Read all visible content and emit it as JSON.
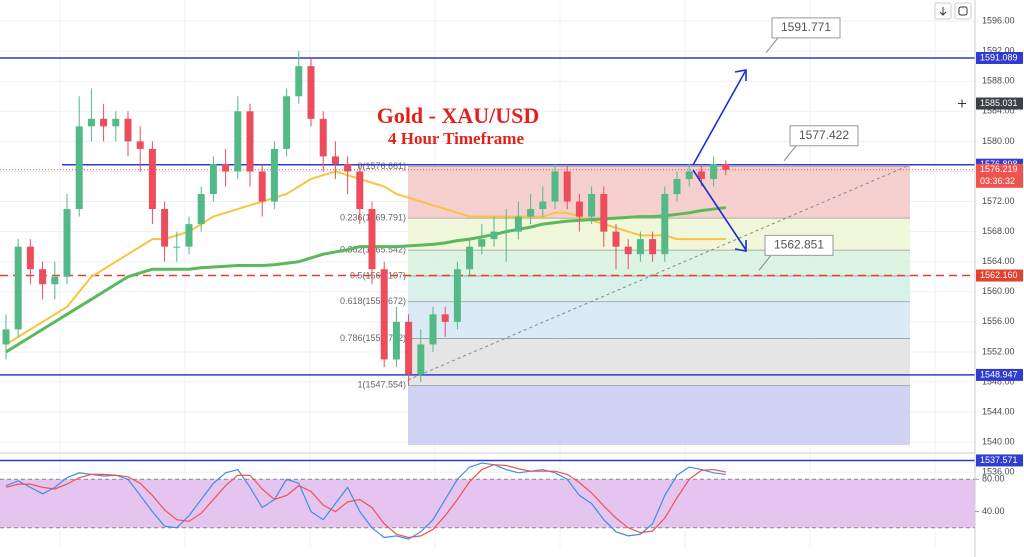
{
  "chart_data": {
    "type": "candlestick",
    "title": "Gold - XAU/USD",
    "subtitle": "4 Hour Timeframe",
    "open": [
      1553,
      1555,
      1566,
      1563,
      1561,
      1562,
      1571,
      1582,
      1583,
      1582,
      1583,
      1580,
      1579,
      1571,
      1566,
      1566,
      1569,
      1573,
      1577,
      1576,
      1584,
      1576,
      1572,
      1579,
      1586,
      1590,
      1583,
      1578,
      1577,
      1576,
      1571,
      1563,
      1551,
      1556,
      1549,
      1553,
      1557,
      1556,
      1563,
      1566,
      1567,
      1568,
      1568,
      1570,
      1571,
      1572,
      1576,
      1572,
      1570,
      1573,
      1568,
      1566,
      1565,
      1567,
      1565,
      1573,
      1575,
      1576,
      1575,
      1577
    ],
    "high": [
      1557,
      1567,
      1567,
      1564,
      1564,
      1573,
      1586,
      1587,
      1585,
      1584,
      1584,
      1582,
      1580,
      1572,
      1568,
      1570,
      1574,
      1578,
      1579,
      1586,
      1585,
      1577,
      1580,
      1587,
      1592,
      1591,
      1584,
      1580,
      1578,
      1577,
      1572,
      1564,
      1558,
      1557,
      1555,
      1558,
      1558,
      1564,
      1567,
      1569,
      1570,
      1571,
      1572,
      1573,
      1574,
      1577,
      1577,
      1573,
      1574,
      1574,
      1569,
      1567,
      1568,
      1568,
      1574,
      1576,
      1577,
      1577,
      1578,
      1577.5
    ],
    "low": [
      1551,
      1554,
      1561,
      1559,
      1559,
      1561,
      1570,
      1580,
      1580,
      1580,
      1578,
      1576,
      1569,
      1564,
      1564,
      1565,
      1568,
      1572,
      1574,
      1575,
      1574,
      1570,
      1571,
      1578,
      1585,
      1582,
      1576,
      1575,
      1573,
      1569,
      1561,
      1550,
      1550,
      1547.554,
      1548,
      1552,
      1554,
      1555,
      1562,
      1565,
      1566,
      1564,
      1567,
      1569,
      1570,
      1571,
      1571,
      1568,
      1569,
      1566,
      1563,
      1563,
      1564,
      1564,
      1564,
      1572,
      1574,
      1574,
      1574,
      1575.5
    ],
    "close": [
      1555,
      1566,
      1563,
      1561,
      1562,
      1571,
      1582,
      1583,
      1582,
      1583,
      1580,
      1579,
      1571,
      1566,
      1566,
      1569,
      1573,
      1577,
      1576,
      1584,
      1576,
      1572,
      1579,
      1586,
      1590,
      1583,
      1578,
      1577,
      1576,
      1571,
      1563,
      1551,
      1556,
      1549,
      1553,
      1557,
      1556,
      1563,
      1566,
      1567,
      1568,
      1568,
      1570,
      1571,
      1572,
      1576,
      1572,
      1570,
      1573,
      1568,
      1566,
      1565,
      1567,
      1565,
      1573,
      1575,
      1576,
      1575,
      1577,
      1576.219
    ],
    "up_color": "#53b987",
    "down_color": "#eb4d5c",
    "ylim": [
      1536.5,
      1598.8
    ],
    "yticks": [
      {
        "value": 1596,
        "label": "1596.00"
      },
      {
        "value": 1592,
        "label": "1592.00"
      },
      {
        "value": 1588,
        "label": "1588.00"
      },
      {
        "value": 1584,
        "label": "1584.00"
      },
      {
        "value": 1580,
        "label": "1580.00"
      },
      {
        "value": 1576,
        "label": "1576.00"
      },
      {
        "value": 1572,
        "label": "1572.00"
      },
      {
        "value": 1568,
        "label": "1568.00"
      },
      {
        "value": 1564,
        "label": "1564.00"
      },
      {
        "value": 1560,
        "label": "1560.00"
      },
      {
        "value": 1556,
        "label": "1556.00"
      },
      {
        "value": 1552,
        "label": "1552.00"
      },
      {
        "value": 1548,
        "label": "1548.00"
      },
      {
        "value": 1544,
        "label": "1544.00"
      },
      {
        "value": 1540,
        "label": "1540.00"
      },
      {
        "value": 1536,
        "label": "1536.00"
      }
    ],
    "grid": true,
    "moving_averages": [
      {
        "color": "#f7c544",
        "values": [
          1553,
          1554,
          1555,
          1556,
          1557,
          1558,
          1560,
          1562,
          1563,
          1564,
          1565,
          1566,
          1567,
          1567,
          1567.5,
          1568,
          1569,
          1570,
          1570.5,
          1571,
          1571.5,
          1572,
          1572.5,
          1573,
          1574,
          1575,
          1575.5,
          1576,
          1575.5,
          1575,
          1574.5,
          1574,
          1573,
          1572.5,
          1572,
          1571.5,
          1571,
          1570.5,
          1570,
          1570,
          1570,
          1570,
          1570,
          1570,
          1570,
          1570.5,
          1570.5,
          1570,
          1569.5,
          1569,
          1568.5,
          1568,
          1567.5,
          1567.5,
          1567.5,
          1567,
          1567,
          1567,
          1567,
          1567
        ]
      },
      {
        "color": "#5cb85c",
        "values": [
          1552,
          1553,
          1554,
          1555,
          1556,
          1557,
          1558,
          1559,
          1560,
          1561,
          1562,
          1562.5,
          1563,
          1563,
          1563,
          1563,
          1563.2,
          1563.3,
          1563.4,
          1563.5,
          1563.5,
          1563.5,
          1563.6,
          1563.8,
          1564,
          1564.5,
          1565,
          1565.3,
          1565.6,
          1566,
          1566,
          1566,
          1566,
          1566.1,
          1566.2,
          1566.3,
          1566.5,
          1566.8,
          1567,
          1567.3,
          1567.6,
          1568,
          1568.3,
          1568.6,
          1569,
          1569.2,
          1569.4,
          1569.5,
          1569.6,
          1569.7,
          1569.8,
          1569.9,
          1570,
          1570,
          1570.1,
          1570.3,
          1570.5,
          1570.8,
          1571,
          1571.2
        ]
      }
    ],
    "levels": [
      {
        "value": 1591.089,
        "label": "1591.089",
        "color": "#2f3ccf",
        "style": "solid"
      },
      {
        "value": 1576.898,
        "label": "1576.898",
        "color": "#2f3ccf",
        "style": "solid"
      },
      {
        "value": 1562.16,
        "label": "1562.160",
        "color": "#e3402f",
        "style": "dashed"
      },
      {
        "value": 1548.947,
        "label": "1548.947",
        "color": "#2f3ccf",
        "style": "solid"
      },
      {
        "value": 1537.571,
        "label": "1537.571",
        "color": "#2f3ccf",
        "style": "solid"
      }
    ],
    "current": {
      "value": 1576.219,
      "label": "1576.219",
      "timer": "03:36:32",
      "color": "#ef5350"
    },
    "cursor": {
      "value": 1585.031,
      "label": "1585.031"
    },
    "fib": [
      {
        "value": 1576.661,
        "label": "0(1576.661)",
        "color": "#f4c7c7"
      },
      {
        "value": 1569.791,
        "label": "0.236(1569.791)",
        "color": "#eef6d4"
      },
      {
        "value": 1565.542,
        "label": "0.382(1565.542)",
        "color": "#d6f2dc"
      },
      {
        "value": 1562.107,
        "label": "0.5(1562.107)",
        "color": "#d2efe8"
      },
      {
        "value": 1558.672,
        "label": "0.618(1558.672)",
        "color": "#d4e6f4"
      },
      {
        "value": 1553.782,
        "label": "0.786(1553.782)",
        "color": "#e1e1e1"
      },
      {
        "value": 1547.554,
        "label": "1(1547.554)",
        "color": "#c9cbf0"
      }
    ],
    "callouts": [
      {
        "value": 1591.771,
        "label": "1591.771"
      },
      {
        "value": 1577.422,
        "label": "1577.422"
      },
      {
        "value": 1562.851,
        "label": "1562.851"
      }
    ],
    "oscillator": {
      "ylim": [
        -5,
        110
      ],
      "yticks": [
        {
          "value": 80,
          "label": "80.00"
        },
        {
          "value": 40,
          "label": "40.00"
        }
      ],
      "bands": [
        80,
        20
      ],
      "series": [
        {
          "color": "#3d8ee8",
          "values": [
            72,
            78,
            70,
            62,
            70,
            82,
            88,
            86,
            84,
            85,
            80,
            60,
            40,
            22,
            20,
            35,
            55,
            75,
            88,
            92,
            70,
            45,
            55,
            80,
            75,
            40,
            30,
            50,
            70,
            40,
            20,
            8,
            10,
            6,
            15,
            30,
            55,
            80,
            95,
            100,
            98,
            92,
            88,
            90,
            92,
            88,
            80,
            60,
            50,
            30,
            15,
            10,
            12,
            25,
            60,
            85,
            95,
            92,
            88,
            86
          ]
        },
        {
          "color": "#ef5350",
          "values": [
            70,
            74,
            74,
            70,
            68,
            74,
            82,
            86,
            86,
            85,
            83,
            75,
            60,
            42,
            30,
            28,
            38,
            55,
            72,
            85,
            85,
            68,
            55,
            60,
            72,
            65,
            48,
            40,
            52,
            55,
            45,
            25,
            12,
            8,
            10,
            18,
            35,
            55,
            77,
            92,
            98,
            97,
            93,
            90,
            90,
            90,
            86,
            76,
            63,
            47,
            32,
            20,
            14,
            16,
            32,
            57,
            80,
            91,
            92,
            89
          ]
        }
      ]
    }
  }
}
